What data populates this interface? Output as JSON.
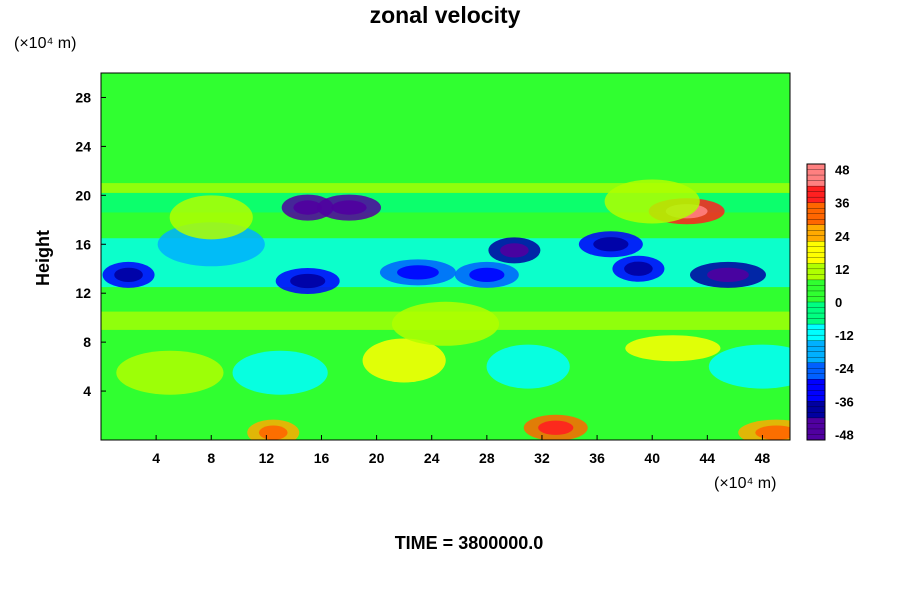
{
  "chart_data": {
    "type": "heatmap",
    "title": "zonal velocity",
    "ylabel": "Height",
    "x_unit_label": "(×10⁴ m)",
    "y_unit_label": "(×10⁴ m)",
    "x_ticks": [
      4,
      8,
      12,
      16,
      20,
      24,
      28,
      32,
      36,
      40,
      44,
      48
    ],
    "y_ticks": [
      4,
      8,
      12,
      16,
      20,
      24,
      28
    ],
    "xlim": [
      0,
      50
    ],
    "ylim": [
      0,
      30
    ],
    "colorbar": {
      "min": -50,
      "max": 50,
      "ticks": [
        48,
        36,
        24,
        12,
        0,
        -12,
        -24,
        -36,
        -48
      ],
      "colors": [
        "#ff8080",
        "#ff2020",
        "#ff6600",
        "#ffaa00",
        "#ffff00",
        "#b0ff00",
        "#30ff30",
        "#00ff80",
        "#00ffff",
        "#00b0ff",
        "#0060ff",
        "#0000ff",
        "#0000a0",
        "#5000a0"
      ]
    },
    "features": [
      {
        "x": 12.5,
        "y": 0.6,
        "value": 28
      },
      {
        "x": 33,
        "y": 1.0,
        "value": 30
      },
      {
        "x": 49,
        "y": 0.6,
        "value": 26
      },
      {
        "x": 22,
        "y": 6.5,
        "value": 18
      },
      {
        "x": 41.5,
        "y": 7.5,
        "value": 20
      },
      {
        "x": 5,
        "y": 5.5,
        "value": 10
      },
      {
        "x": 31,
        "y": 6.0,
        "value": -14
      },
      {
        "x": 13,
        "y": 5.5,
        "value": -8
      },
      {
        "x": 48,
        "y": 6.0,
        "value": -8
      },
      {
        "x": 15,
        "y": 19.0,
        "value": -44
      },
      {
        "x": 18,
        "y": 19.0,
        "value": -44
      },
      {
        "x": 42.5,
        "y": 18.7,
        "value": 40
      },
      {
        "x": 2,
        "y": 13.5,
        "value": -34
      },
      {
        "x": 15,
        "y": 13.0,
        "value": -30
      },
      {
        "x": 23,
        "y": 13.7,
        "value": -28
      },
      {
        "x": 30,
        "y": 15.5,
        "value": -36
      },
      {
        "x": 37,
        "y": 16.0,
        "value": -34
      },
      {
        "x": 45.5,
        "y": 13.5,
        "value": -40
      },
      {
        "x": 39,
        "y": 14.0,
        "value": -30
      },
      {
        "x": 28,
        "y": 13.5,
        "value": -24
      },
      {
        "x": 8,
        "y": 16.0,
        "value": -18
      },
      {
        "x": 8,
        "y": 18.2,
        "value": 14
      },
      {
        "x": 40,
        "y": 19.5,
        "value": 12
      },
      {
        "x": 25,
        "y": 9.5,
        "value": 14
      }
    ]
  },
  "footer": {
    "time_text": "TIME = 3800000.0"
  }
}
